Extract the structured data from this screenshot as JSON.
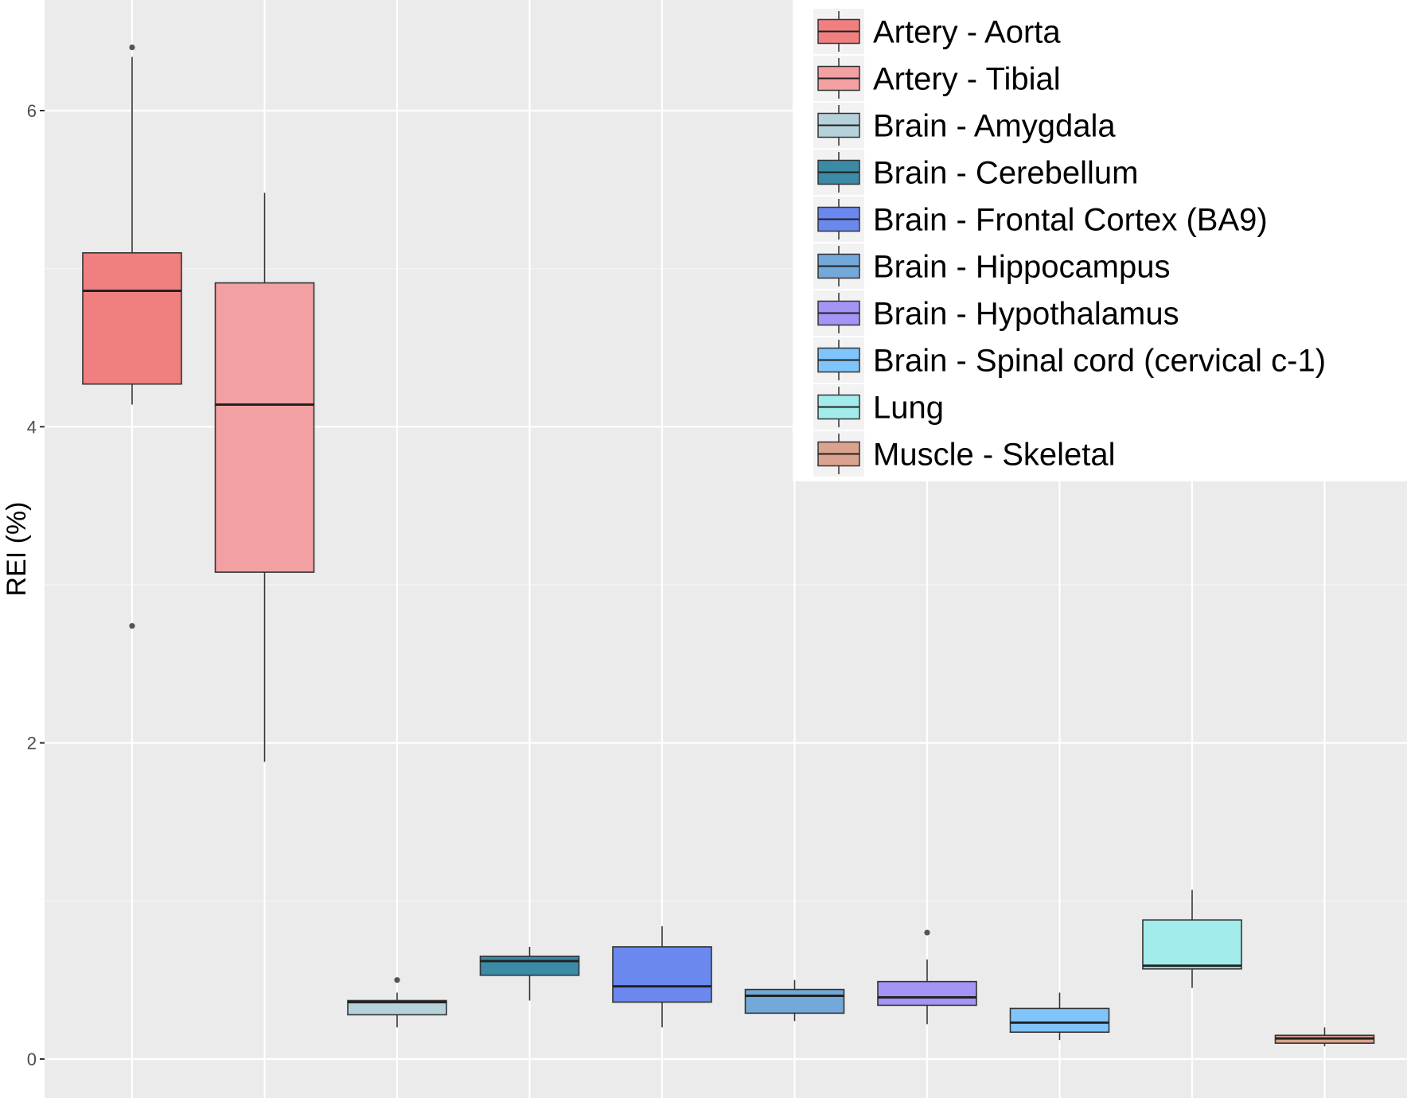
{
  "chart_data": {
    "type": "box",
    "title": "",
    "xlabel": "",
    "ylabel": "REI (%)",
    "ylim": [
      -0.23,
      6.72
    ],
    "yticks": [
      0,
      2,
      4,
      6
    ],
    "ytick_labels": [
      "0",
      "2",
      "4",
      "6"
    ],
    "grid": true,
    "legend_position": "top-right",
    "series": [
      {
        "name": "Artery - Aorta",
        "color": "#f08080",
        "whisker_low": 4.14,
        "q1": 4.27,
        "median": 4.86,
        "q3": 5.1,
        "whisker_high": 6.34,
        "outliers": [
          6.4,
          2.74
        ]
      },
      {
        "name": "Artery - Tibial",
        "color": "#f2a0a2",
        "whisker_low": 1.88,
        "q1": 3.08,
        "median": 4.14,
        "q3": 4.91,
        "whisker_high": 5.48,
        "outliers": []
      },
      {
        "name": "Brain - Amygdala",
        "color": "#b5d1da",
        "whisker_low": 0.2,
        "q1": 0.28,
        "median": 0.36,
        "q3": 0.37,
        "whisker_high": 0.42,
        "outliers": [
          0.5
        ]
      },
      {
        "name": "Brain - Cerebellum",
        "color": "#3b8aa6",
        "whisker_low": 0.37,
        "q1": 0.53,
        "median": 0.62,
        "q3": 0.65,
        "whisker_high": 0.71,
        "outliers": []
      },
      {
        "name": "Brain - Frontal Cortex (BA9)",
        "color": "#6a88ee",
        "whisker_low": 0.2,
        "q1": 0.36,
        "median": 0.46,
        "q3": 0.71,
        "whisker_high": 0.84,
        "outliers": []
      },
      {
        "name": "Brain - Hippocampus",
        "color": "#72a8da",
        "whisker_low": 0.24,
        "q1": 0.29,
        "median": 0.4,
        "q3": 0.44,
        "whisker_high": 0.5,
        "outliers": []
      },
      {
        "name": "Brain - Hypothalamus",
        "color": "#a394f5",
        "whisker_low": 0.22,
        "q1": 0.34,
        "median": 0.39,
        "q3": 0.49,
        "whisker_high": 0.63,
        "outliers": [
          0.8
        ]
      },
      {
        "name": "Brain - Spinal cord (cervical c-1)",
        "color": "#7fc5fb",
        "whisker_low": 0.12,
        "q1": 0.17,
        "median": 0.23,
        "q3": 0.32,
        "whisker_high": 0.42,
        "outliers": []
      },
      {
        "name": "Lung",
        "color": "#a3ecec",
        "whisker_low": 0.45,
        "q1": 0.57,
        "median": 0.59,
        "q3": 0.88,
        "whisker_high": 1.07,
        "outliers": []
      },
      {
        "name": "Muscle - Skeletal",
        "color": "#dba28e",
        "whisker_low": 0.08,
        "q1": 0.1,
        "median": 0.13,
        "q3": 0.15,
        "whisker_high": 0.2,
        "outliers": []
      }
    ]
  }
}
